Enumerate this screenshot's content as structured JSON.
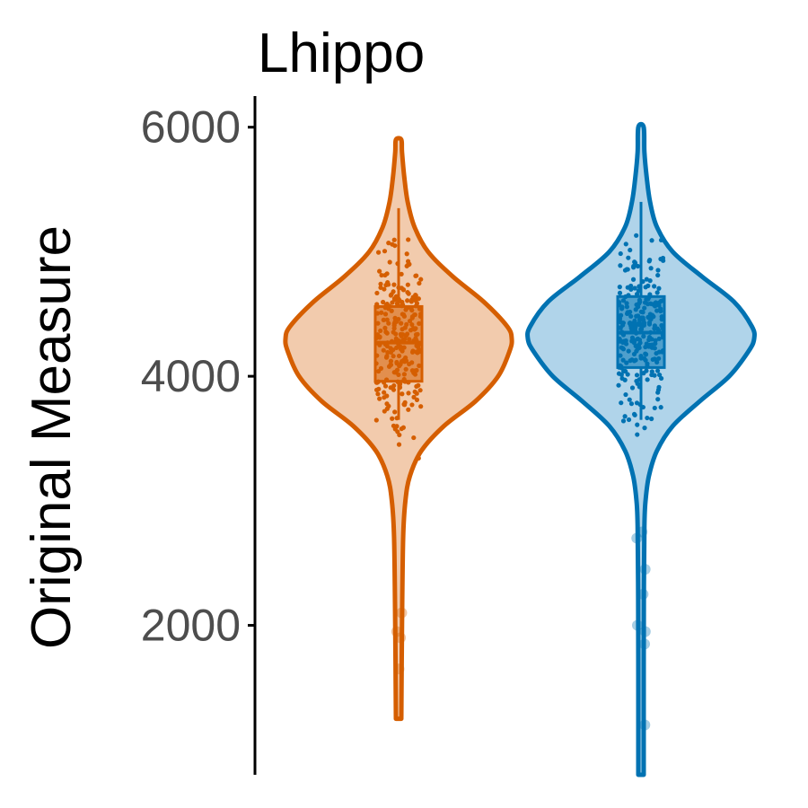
{
  "chart_data": {
    "type": "violin",
    "title": "Lhippo",
    "xlabel": "",
    "ylabel": "Original Measure",
    "ylim": [
      800,
      6250
    ],
    "yticks": [
      2000,
      4000,
      6000
    ],
    "ytick_labels": [
      "2000",
      "4000",
      "6000"
    ],
    "grid": false,
    "legend": "none",
    "groups": [
      {
        "color": "#D55E00",
        "fill": "#F2CBAD",
        "min": 1250,
        "max": 5900,
        "box": {
          "q1": 3960,
          "median": 4270,
          "q3": 4560,
          "whisker_low": 3650,
          "whisker_high": 5350
        },
        "density": [
          [
            1250,
            0.02
          ],
          [
            2000,
            0.03
          ],
          [
            2700,
            0.04
          ],
          [
            3000,
            0.06
          ],
          [
            3200,
            0.1
          ],
          [
            3400,
            0.2
          ],
          [
            3600,
            0.4
          ],
          [
            3800,
            0.68
          ],
          [
            4000,
            0.88
          ],
          [
            4200,
            0.98
          ],
          [
            4300,
            1.0
          ],
          [
            4400,
            0.96
          ],
          [
            4600,
            0.75
          ],
          [
            4800,
            0.48
          ],
          [
            5000,
            0.26
          ],
          [
            5200,
            0.14
          ],
          [
            5400,
            0.08
          ],
          [
            5600,
            0.05
          ],
          [
            5800,
            0.03
          ],
          [
            5900,
            0.01
          ]
        ],
        "outliers": [
          1650,
          1950,
          2100,
          1900
        ]
      },
      {
        "color": "#0072B2",
        "fill": "#B0D4EA",
        "min": 800,
        "max": 6000,
        "box": {
          "q1": 4070,
          "median": 4350,
          "q3": 4640,
          "whisker_low": 3650,
          "whisker_high": 5400
        },
        "density": [
          [
            800,
            0.01
          ],
          [
            1500,
            0.02
          ],
          [
            2200,
            0.025
          ],
          [
            2800,
            0.03
          ],
          [
            3000,
            0.04
          ],
          [
            3200,
            0.07
          ],
          [
            3400,
            0.14
          ],
          [
            3600,
            0.28
          ],
          [
            3800,
            0.52
          ],
          [
            4000,
            0.78
          ],
          [
            4200,
            0.95
          ],
          [
            4300,
            1.0
          ],
          [
            4400,
            0.98
          ],
          [
            4600,
            0.82
          ],
          [
            4800,
            0.54
          ],
          [
            5000,
            0.28
          ],
          [
            5200,
            0.14
          ],
          [
            5400,
            0.08
          ],
          [
            5600,
            0.05
          ],
          [
            5800,
            0.03
          ],
          [
            6000,
            0.01
          ]
        ],
        "outliers": [
          1200,
          1850,
          1950,
          2000,
          2250,
          2450,
          2700,
          2750
        ]
      }
    ]
  }
}
